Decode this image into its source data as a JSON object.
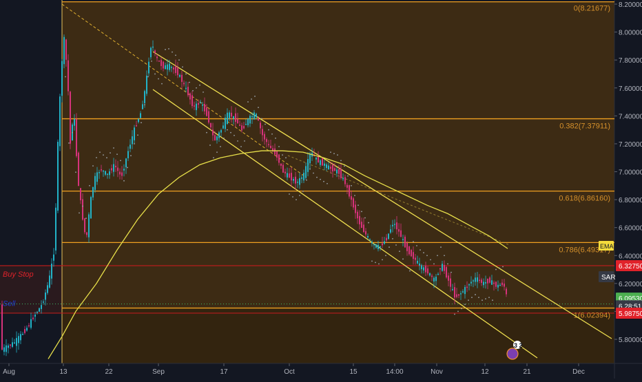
{
  "chart_data": {
    "type": "line",
    "instrument_style": "candlestick",
    "ylim": [
      5.66,
      8.22
    ],
    "y_ticks": [
      "5.80000",
      "6.00000",
      "6.20000",
      "6.40000",
      "6.60000",
      "6.80000",
      "7.00000",
      "7.20000",
      "7.40000",
      "7.60000",
      "7.80000",
      "8.00000",
      "8.20000"
    ],
    "x_labels": [
      "Aug",
      "13",
      "22",
      "Sep",
      "17",
      "Oct",
      "15",
      "14:00",
      "Nov",
      "12",
      "21",
      "Dec"
    ],
    "fib_levels": [
      {
        "label": "0(8.21677)",
        "value": 8.21677
      },
      {
        "label": "0.382(7.37911)",
        "value": 7.37911
      },
      {
        "label": "0.618(6.86160)",
        "value": 6.8616
      },
      {
        "label": "0.786(6.49317)",
        "value": 6.49317
      },
      {
        "label": "1(6.02394)",
        "value": 6.02394
      }
    ],
    "zones": [
      {
        "label": "Buy Stop",
        "value": 6.3275,
        "color": "#e0222a"
      },
      {
        "label": "Sell",
        "value": 5.9875,
        "color": "#1e3bd6"
      }
    ],
    "badges": [
      {
        "label": "SAR",
        "color": "#363a45"
      },
      {
        "label": "EMA",
        "color": "#f5dc3c"
      }
    ],
    "price_labels": [
      {
        "text": "6.32750",
        "value": 6.3275,
        "color": "#e0222a"
      },
      {
        "text": "6.09530",
        "value": 6.0953,
        "color": "#4caf50"
      },
      {
        "text": "6.28:51",
        "value": 6.04,
        "color": "#363a45"
      },
      {
        "text": "5.98750",
        "value": 5.9875,
        "color": "#e0222a"
      }
    ],
    "channel_note": "descending yellow channel from Sep high to Nov",
    "event_marker": "3 2",
    "colors": {
      "background": "#131722",
      "shade": "#3d2b14",
      "fib": "#f0a020",
      "ema": "#e8e04a",
      "up": "#22b3c8",
      "down": "#d6337b",
      "sar": "#9aa0a8",
      "red_line": "#b71c1c"
    }
  }
}
